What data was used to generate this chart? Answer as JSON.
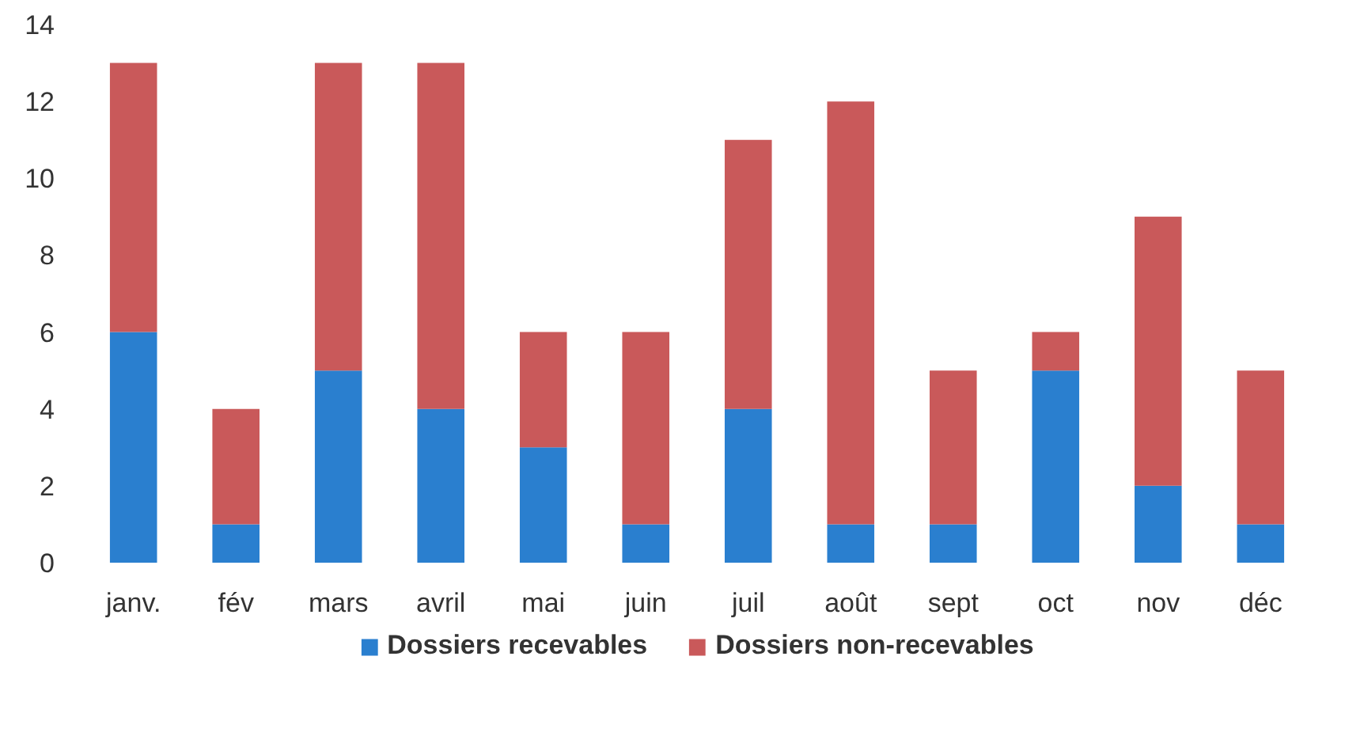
{
  "chart_data": {
    "type": "bar",
    "stacked": true,
    "categories": [
      "janv.",
      "fév",
      "mars",
      "avril",
      "mai",
      "juin",
      "juil",
      "août",
      "sept",
      "oct",
      "nov",
      "déc"
    ],
    "series": [
      {
        "name": "Dossiers recevables",
        "color": "#2a7fcf",
        "values": [
          6,
          1,
          5,
          4,
          3,
          1,
          4,
          1,
          1,
          5,
          2,
          1
        ]
      },
      {
        "name": "Dossiers non-recevables",
        "color": "#c9595a",
        "values": [
          7,
          3,
          8,
          9,
          3,
          5,
          7,
          11,
          4,
          1,
          7,
          4
        ]
      }
    ],
    "ylim": [
      0,
      14
    ],
    "yticks": [
      0,
      2,
      4,
      6,
      8,
      10,
      12,
      14
    ],
    "grid": false,
    "legend": "bottom"
  }
}
